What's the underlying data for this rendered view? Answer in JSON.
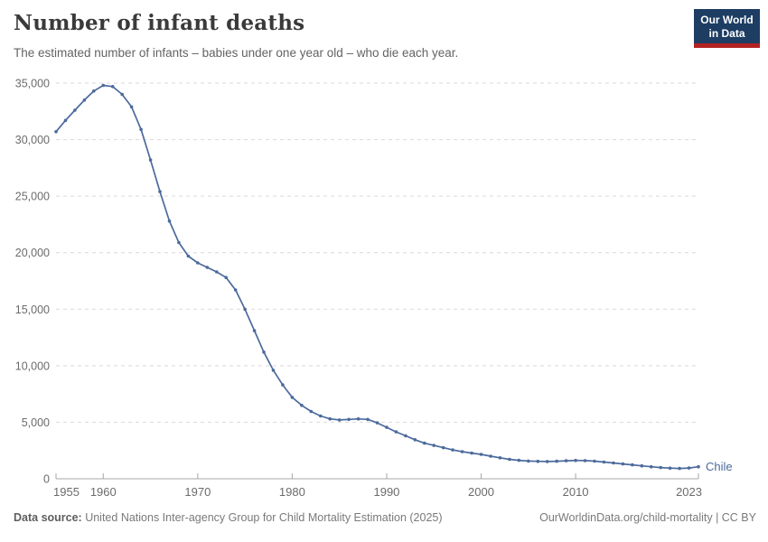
{
  "header": {
    "title": "Number of infant deaths",
    "subtitle": "The estimated number of infants – babies under one year old – who die each year.",
    "logo": {
      "line1": "Our World",
      "line2": "in Data"
    }
  },
  "colors": {
    "line": "#4c6a9c",
    "axis_text": "#6b6b6b",
    "gridline": "#d9d9d9",
    "axis_line": "#a7a7a7",
    "logo_navy": "#1d3d63",
    "logo_red": "#b22222"
  },
  "chart_data": {
    "type": "line",
    "title": "Number of infant deaths",
    "xlabel": "",
    "ylabel": "",
    "xlim": [
      1955,
      2023
    ],
    "ylim": [
      0,
      35000
    ],
    "grid": "horizontal-dashed",
    "legend_position": "end-of-line",
    "line_color": "#4c6a9c",
    "x": [
      1955,
      1956,
      1957,
      1958,
      1959,
      1960,
      1961,
      1962,
      1963,
      1964,
      1965,
      1966,
      1967,
      1968,
      1969,
      1970,
      1971,
      1972,
      1973,
      1974,
      1975,
      1976,
      1977,
      1978,
      1979,
      1980,
      1981,
      1982,
      1983,
      1984,
      1985,
      1986,
      1987,
      1988,
      1989,
      1990,
      1991,
      1992,
      1993,
      1994,
      1995,
      1996,
      1997,
      1998,
      1999,
      2000,
      2001,
      2002,
      2003,
      2004,
      2005,
      2006,
      2007,
      2008,
      2009,
      2010,
      2011,
      2012,
      2013,
      2014,
      2015,
      2016,
      2017,
      2018,
      2019,
      2020,
      2021,
      2022,
      2023
    ],
    "series": [
      {
        "name": "Chile",
        "values": [
          30700,
          31700,
          32600,
          33500,
          34300,
          34800,
          34700,
          34000,
          32900,
          30900,
          28200,
          25400,
          22800,
          20900,
          19700,
          19100,
          18700,
          18300,
          17800,
          16700,
          15000,
          13100,
          11200,
          9600,
          8300,
          7200,
          6500,
          5950,
          5550,
          5300,
          5200,
          5250,
          5300,
          5250,
          4950,
          4550,
          4150,
          3800,
          3450,
          3150,
          2950,
          2750,
          2550,
          2400,
          2270,
          2160,
          2000,
          1850,
          1720,
          1630,
          1570,
          1540,
          1530,
          1550,
          1590,
          1620,
          1610,
          1560,
          1480,
          1400,
          1310,
          1230,
          1140,
          1060,
          990,
          940,
          910,
          950,
          1060
        ]
      }
    ],
    "x_ticks": [
      {
        "value": 1955,
        "label": "1955"
      },
      {
        "value": 1960,
        "label": "1960"
      },
      {
        "value": 1970,
        "label": "1970"
      },
      {
        "value": 1980,
        "label": "1980"
      },
      {
        "value": 1990,
        "label": "1990"
      },
      {
        "value": 2000,
        "label": "2000"
      },
      {
        "value": 2010,
        "label": "2010"
      },
      {
        "value": 2023,
        "label": "2023"
      }
    ],
    "y_ticks": [
      {
        "value": 0,
        "label": "0"
      },
      {
        "value": 5000,
        "label": "5,000"
      },
      {
        "value": 10000,
        "label": "10,000"
      },
      {
        "value": 15000,
        "label": "15,000"
      },
      {
        "value": 20000,
        "label": "20,000"
      },
      {
        "value": 25000,
        "label": "25,000"
      },
      {
        "value": 30000,
        "label": "30,000"
      },
      {
        "value": 35000,
        "label": "35,000"
      }
    ]
  },
  "footer": {
    "datasource_label": "Data source:",
    "datasource_text": " United Nations Inter-agency Group for Child Mortality Estimation (2025)",
    "link_text": "OurWorldinData.org/child-mortality | CC BY"
  }
}
